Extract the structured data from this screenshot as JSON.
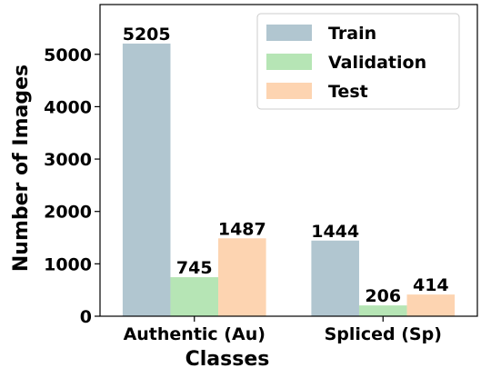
{
  "chart_data": {
    "type": "bar",
    "xlabel": "Classes",
    "ylabel": "Number of Images",
    "categories": [
      "Authentic (Au)",
      "Spliced (Sp)"
    ],
    "series": [
      {
        "name": "Train",
        "color": "#b1c6d0",
        "values": [
          5205,
          1444
        ]
      },
      {
        "name": "Validation",
        "color": "#b6e5b5",
        "values": [
          745,
          206
        ]
      },
      {
        "name": "Test",
        "color": "#fdd4b1",
        "values": [
          1487,
          414
        ]
      }
    ],
    "ylim": [
      0,
      5950
    ],
    "yticks": [
      0,
      1000,
      2000,
      3000,
      4000,
      5000
    ],
    "legend": "upper right",
    "grid": false
  }
}
